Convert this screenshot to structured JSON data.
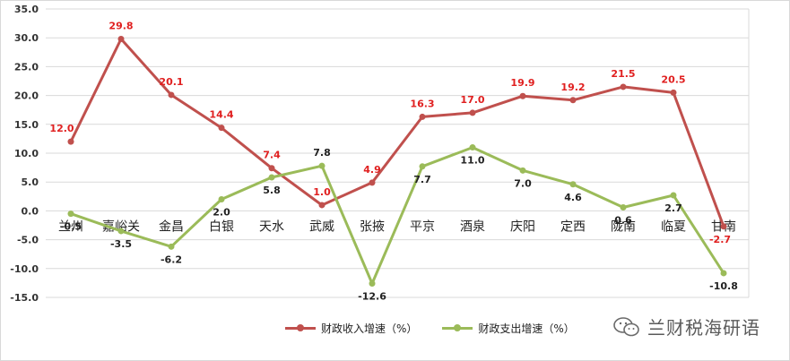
{
  "chart_data": {
    "type": "line",
    "categories": [
      "兰州",
      "嘉峪关",
      "金昌",
      "白银",
      "天水",
      "武威",
      "张掖",
      "平京",
      "酒泉",
      "庆阳",
      "定西",
      "陇南",
      "临夏",
      "甘南"
    ],
    "series": [
      {
        "name": "财政收入增速（%）",
        "color": "#c0504d",
        "values": [
          12.0,
          29.8,
          20.1,
          14.4,
          7.4,
          1.0,
          4.9,
          16.3,
          17.0,
          19.9,
          19.2,
          21.5,
          20.5,
          -2.7
        ],
        "labels": [
          "12.0",
          "29.8",
          "20.1",
          "14.4",
          "7.4",
          "1.0",
          "4.9",
          "16.3",
          "17.0",
          "19.9",
          "19.2",
          "21.5",
          "20.5",
          "-2.7"
        ]
      },
      {
        "name": "财政支出增速（%）",
        "color": "#9bbb59",
        "values": [
          -0.5,
          -3.5,
          -6.2,
          2.0,
          5.8,
          7.8,
          -12.6,
          7.7,
          11.0,
          7.0,
          4.6,
          0.6,
          2.7,
          -10.8
        ],
        "labels": [
          "-0.5",
          "-3.5",
          "-6.2",
          "2.0",
          "5.8",
          "7.8",
          "-12.6",
          "7.7",
          "11.0",
          "7.0",
          "4.6",
          "0.6",
          "2.7",
          "-10.8"
        ]
      }
    ],
    "ylim": [
      -15,
      35
    ],
    "yticks": [
      -15,
      -10,
      -5,
      0,
      5,
      10,
      15,
      20,
      25,
      30,
      35
    ],
    "ytick_labels": [
      "-15.0",
      "-10.0",
      "-5.0",
      "0.0",
      "5.0",
      "10.0",
      "15.0",
      "20.0",
      "25.0",
      "30.0",
      "35.0"
    ],
    "grid": true,
    "legend_position": "bottom"
  },
  "legend": {
    "income": "财政收入增速（%）",
    "expense": "财政支出增速（%）"
  },
  "watermark": {
    "text": "兰财税海研语"
  }
}
